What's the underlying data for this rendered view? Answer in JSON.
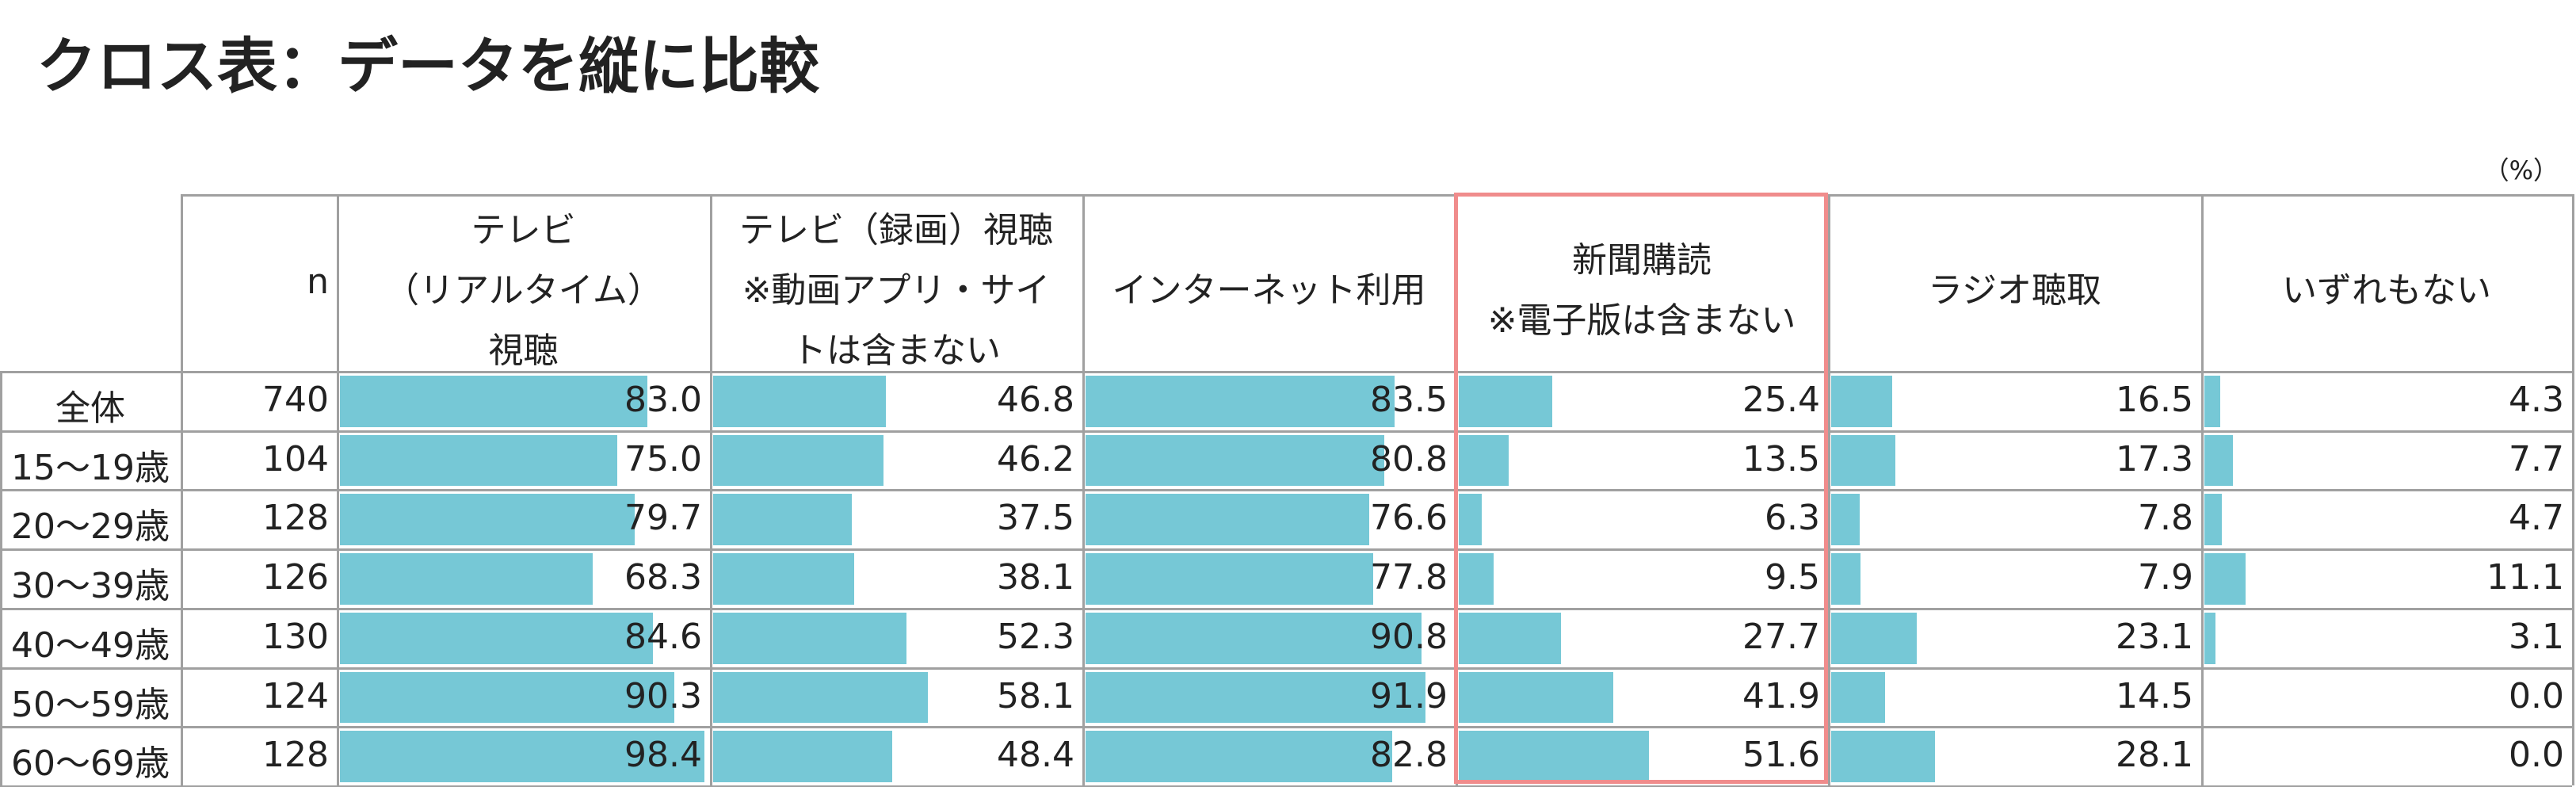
{
  "title": "クロス表：データを縦に比較",
  "unit_note": "（%）",
  "table": {
    "n_header": "n",
    "columns": [
      {
        "lines": [
          "テレビ",
          "（リアルタイム）",
          "視聴"
        ]
      },
      {
        "lines": [
          "テレビ（録画）視聴",
          "※動画アプリ・サイ",
          "トは含まない"
        ]
      },
      {
        "lines": [
          "インターネット利用"
        ]
      },
      {
        "lines": [
          "新聞購読",
          "※電子版は含まない"
        ]
      },
      {
        "lines": [
          "ラジオ聴取"
        ]
      },
      {
        "lines": [
          "いずれもない"
        ]
      }
    ],
    "rows": [
      {
        "label": "全体",
        "n": 740,
        "values": [
          83.0,
          46.8,
          83.5,
          25.4,
          16.5,
          4.3
        ],
        "value_labels": [
          "83.0",
          "46.8",
          "83.5",
          "25.4",
          "16.5",
          "4.3"
        ]
      },
      {
        "label": "15～19歳",
        "n": 104,
        "values": [
          75.0,
          46.2,
          80.8,
          13.5,
          17.3,
          7.7
        ],
        "value_labels": [
          "75.0",
          "46.2",
          "80.8",
          "13.5",
          "17.3",
          "7.7"
        ]
      },
      {
        "label": "20～29歳",
        "n": 128,
        "values": [
          79.7,
          37.5,
          76.6,
          6.3,
          7.8,
          4.7
        ],
        "value_labels": [
          "79.7",
          "37.5",
          "76.6",
          "6.3",
          "7.8",
          "4.7"
        ]
      },
      {
        "label": "30～39歳",
        "n": 126,
        "values": [
          68.3,
          38.1,
          77.8,
          9.5,
          7.9,
          11.1
        ],
        "value_labels": [
          "68.3",
          "38.1",
          "77.8",
          "9.5",
          "7.9",
          "11.1"
        ]
      },
      {
        "label": "40～49歳",
        "n": 130,
        "values": [
          84.6,
          52.3,
          90.8,
          27.7,
          23.1,
          3.1
        ],
        "value_labels": [
          "84.6",
          "52.3",
          "90.8",
          "27.7",
          "23.1",
          "3.1"
        ]
      },
      {
        "label": "50～59歳",
        "n": 124,
        "values": [
          90.3,
          58.1,
          91.9,
          41.9,
          14.5,
          0.0
        ],
        "value_labels": [
          "90.3",
          "58.1",
          "91.9",
          "41.9",
          "14.5",
          "0.0"
        ]
      },
      {
        "label": "60～69歳",
        "n": 128,
        "values": [
          98.4,
          48.4,
          82.8,
          51.6,
          28.1,
          0.0
        ],
        "value_labels": [
          "98.4",
          "48.4",
          "82.8",
          "51.6",
          "28.1",
          "0.0"
        ]
      }
    ],
    "bar_max": 100,
    "bar_color": "#76c8d6",
    "highlight": {
      "column": 3,
      "color": "#f08c8c"
    }
  }
}
